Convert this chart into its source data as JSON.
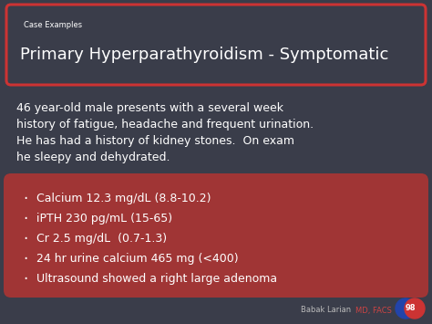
{
  "bg_color": "#3a3d4a",
  "title_box_border_color": "#cc3333",
  "title_box_bg": "#3a3d4a",
  "case_label": "Case Examples",
  "title": "Primary Hyperparathyroidism - Symptomatic",
  "body_text": "46 year-old male presents with a several week\nhistory of fatigue, headache and frequent urination.\nHe has had a history of kidney stones.  On exam\nhe sleepy and dehydrated.",
  "bullet_box_color": "#a03535",
  "bullets": [
    "Calcium 12.3 mg/dL (8.8-10.2)",
    "iPTH 230 pg/mL (15-65)",
    "Cr 2.5 mg/dL  (0.7-1.3)",
    "24 hr urine calcium 465 mg (<400)",
    "Ultrasound showed a right large adenoma"
  ],
  "text_color": "#ffffff",
  "footer_name": "Babak Larian",
  "footer_credential": "MD, FACS",
  "footer_name_color": "#bbbbbb",
  "footer_credential_color": "#cc4444",
  "logo_color1": "#2244aa",
  "logo_color2": "#cc3333",
  "logo_text": "98"
}
